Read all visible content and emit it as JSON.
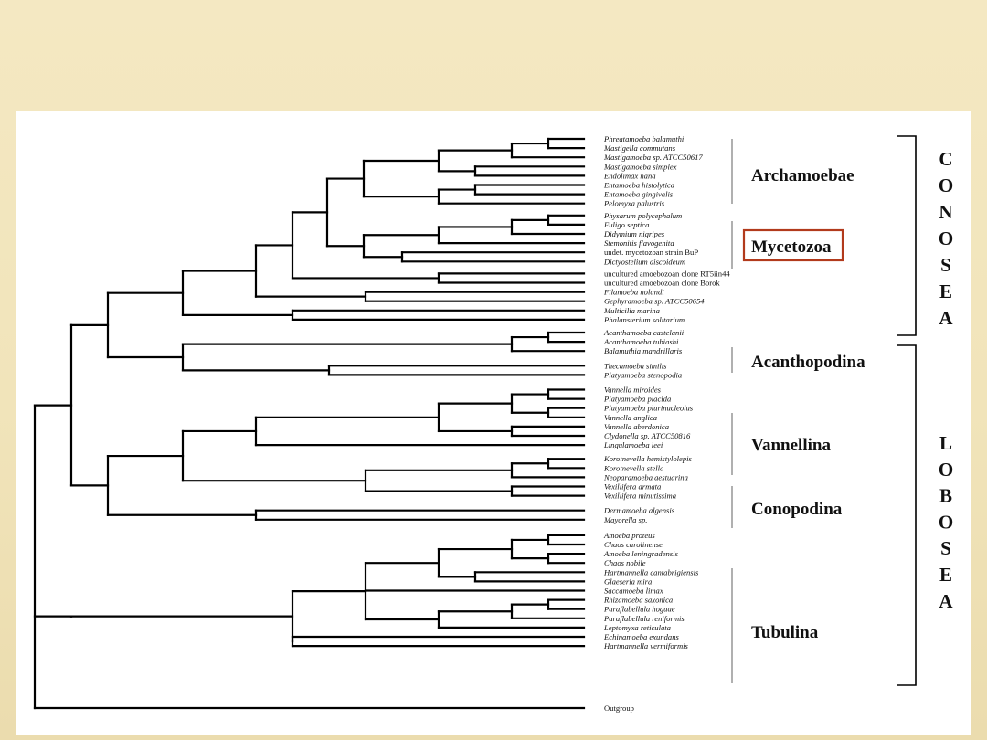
{
  "taxa": [
    "Phreatamoeba balamuthi",
    "Mastigella commutans",
    "Mastigamoeba sp. ATCC50617",
    "Mastigamoeba simplex",
    "Endolimax nana",
    "Entamoeba histolytica",
    "Entamoeba gingivalis",
    "Pelomyxa palustris",
    "Physarum polycephalum",
    "Fuligo septica",
    "Didymium nigripes",
    "Stemonitis flavogenita",
    "undet. mycetozoan strain BuP",
    "Dictyostelium discoideum",
    "uncultured amoebozoan clone RT5iin44",
    "uncultured amoebozoan clone Borok",
    "Filamoeba nolandi",
    "Gephyramoeba sp. ATCC50654",
    "Multicilia marina",
    "Phalansterium solitarium",
    "Acanthamoeba castelanii",
    "Acanthamoeba tubiashi",
    "Balamuthia mandrillaris",
    "Thecamoeba similis",
    "Platyamoeba stenopodia",
    "Vannella miroides",
    "Platyamoeba placida",
    "Platyamoeba plurinucleolus",
    "Vannella anglica",
    "Vannella aberdonica",
    "Clydonella sp. ATCC50816",
    "Lingulamoeba leei",
    "Korotnevella hemistylolepis",
    "Korotnevella stella",
    "Neoparamoeba aestuarina",
    "Vexillifera armata",
    "Vexillifera minutissima",
    "Dermamoeba algensis",
    "Mayorella sp.",
    "Amoeba proteus",
    "Chaos carolinense",
    "Amoeba leningradensis",
    "Chaos nobile",
    "Hartmannella cantabrigiensis",
    "Glaeseria mira",
    "Saccamoeba limax",
    "Rhizamoeba saxonica",
    "Paraflabellula hoguae",
    "Paraflabellula reniformis",
    "Leptomyxa reticulata",
    "Echinamoeba exundans",
    "Hartmannella vermiformis",
    "Outgroup"
  ],
  "groups": {
    "archamoebae": "Archamoebae",
    "mycetozoa": "Mycetozoa",
    "acanthopodina": "Acanthopodina",
    "vannellina": "Vannellina",
    "conopodina": "Conopodina",
    "tubulina": "Tubulina"
  },
  "classes": {
    "conosea": "CONOSEA",
    "lobosea": "LOBOSEA"
  },
  "highlight_color": "#b23a1c"
}
